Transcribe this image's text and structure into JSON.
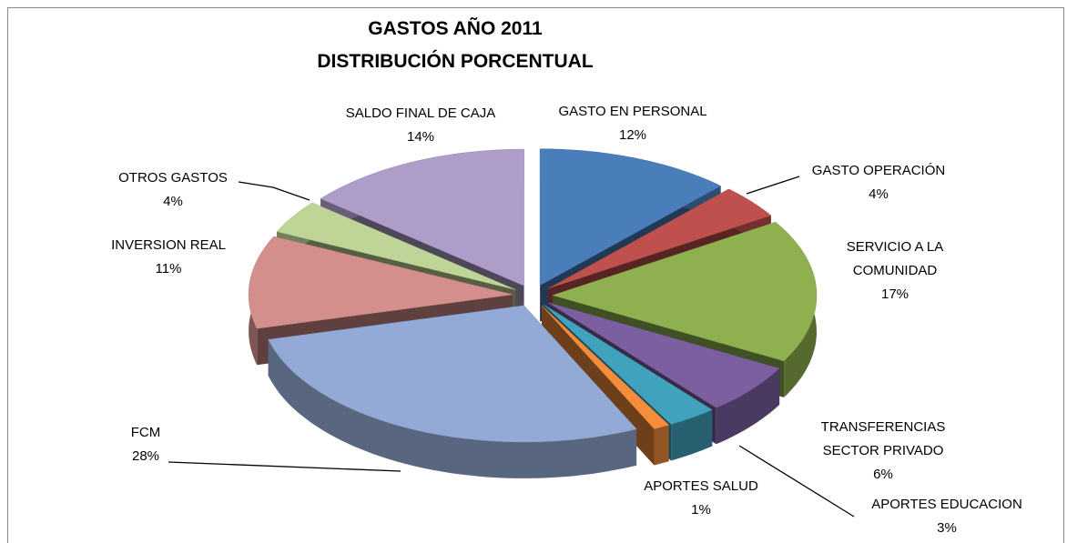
{
  "chart_data": {
    "type": "pie3d",
    "title": "GASTOS AÑO 2011",
    "subtitle": "DISTRIBUCIÓN PORCENTUAL",
    "categories": [
      "GASTO EN PERSONAL",
      "GASTO OPERACIÓN",
      "SERVICIO A LA COMUNIDAD",
      "TRANSFERENCIAS SECTOR PRIVADO",
      "APORTES EDUCACION",
      "APORTES SALUD",
      "FCM",
      "INVERSION REAL",
      "OTROS GASTOS",
      "SALDO FINAL DE CAJA"
    ],
    "values": [
      12,
      4,
      17,
      6,
      3,
      1,
      28,
      11,
      4,
      14
    ],
    "value_labels": [
      "12%",
      "4%",
      "17%",
      "6%",
      "3%",
      "1%",
      "28%",
      "11%",
      "4%",
      "14%"
    ],
    "colors": [
      "#4a7ebb",
      "#c0504d",
      "#8fb04f",
      "#7b5fa0",
      "#41a2bd",
      "#f58d3c",
      "#94aad6",
      "#d48f8d",
      "#bfd497",
      "#ad9dc8"
    ]
  }
}
